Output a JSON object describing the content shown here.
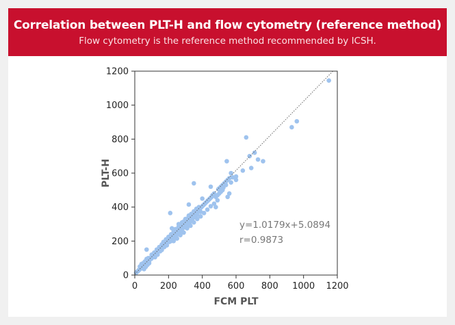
{
  "header": {
    "title": "Correlation between PLT-H and flow cytometry (reference method)",
    "subtitle": "Flow cytometry is the reference method recommended by ICSH."
  },
  "colors": {
    "banner": "#c8102e",
    "points": "#9fc3ee",
    "axis": "#333333",
    "trendline": "#666666",
    "annotation": "#777777"
  },
  "chart_data": {
    "type": "scatter",
    "xlabel": "FCM PLT",
    "ylabel": "PLT-H",
    "xlim": [
      0,
      1200
    ],
    "ylim": [
      0,
      1200
    ],
    "xticks": [
      0,
      200,
      400,
      600,
      800,
      1000,
      1200
    ],
    "yticks": [
      0,
      200,
      400,
      600,
      800,
      1000,
      1200
    ],
    "grid": false,
    "trendline": {
      "slope": 1.0179,
      "intercept": 5.0894
    },
    "annotations": [
      "y=1.0179x+5.0894",
      "r=0.9873"
    ],
    "points": [
      [
        8,
        14
      ],
      [
        12,
        18
      ],
      [
        18,
        22
      ],
      [
        22,
        28
      ],
      [
        26,
        30
      ],
      [
        30,
        35
      ],
      [
        34,
        38
      ],
      [
        38,
        44
      ],
      [
        40,
        48
      ],
      [
        42,
        40
      ],
      [
        45,
        52
      ],
      [
        48,
        50
      ],
      [
        50,
        55
      ],
      [
        52,
        60
      ],
      [
        55,
        50
      ],
      [
        58,
        62
      ],
      [
        60,
        70
      ],
      [
        62,
        58
      ],
      [
        65,
        72
      ],
      [
        68,
        66
      ],
      [
        70,
        78
      ],
      [
        72,
        70
      ],
      [
        75,
        80
      ],
      [
        78,
        75
      ],
      [
        80,
        85
      ],
      [
        82,
        90
      ],
      [
        85,
        82
      ],
      [
        88,
        95
      ],
      [
        90,
        92
      ],
      [
        92,
        98
      ],
      [
        95,
        100
      ],
      [
        98,
        96
      ],
      [
        100,
        108
      ],
      [
        102,
        104
      ],
      [
        105,
        110
      ],
      [
        108,
        115
      ],
      [
        110,
        106
      ],
      [
        112,
        120
      ],
      [
        115,
        118
      ],
      [
        118,
        125
      ],
      [
        120,
        122
      ],
      [
        122,
        130
      ],
      [
        125,
        128
      ],
      [
        128,
        135
      ],
      [
        130,
        132
      ],
      [
        132,
        140
      ],
      [
        135,
        138
      ],
      [
        138,
        145
      ],
      [
        140,
        142
      ],
      [
        142,
        150
      ],
      [
        145,
        148
      ],
      [
        148,
        155
      ],
      [
        150,
        152
      ],
      [
        152,
        160
      ],
      [
        155,
        158
      ],
      [
        158,
        165
      ],
      [
        160,
        162
      ],
      [
        162,
        170
      ],
      [
        165,
        168
      ],
      [
        168,
        175
      ],
      [
        170,
        172
      ],
      [
        172,
        180
      ],
      [
        175,
        178
      ],
      [
        178,
        185
      ],
      [
        180,
        182
      ],
      [
        182,
        190
      ],
      [
        185,
        188
      ],
      [
        188,
        195
      ],
      [
        190,
        192
      ],
      [
        192,
        200
      ],
      [
        195,
        198
      ],
      [
        198,
        205
      ],
      [
        200,
        202
      ],
      [
        202,
        210
      ],
      [
        205,
        208
      ],
      [
        208,
        215
      ],
      [
        210,
        212
      ],
      [
        212,
        220
      ],
      [
        215,
        218
      ],
      [
        218,
        225
      ],
      [
        220,
        222
      ],
      [
        222,
        230
      ],
      [
        225,
        228
      ],
      [
        228,
        235
      ],
      [
        230,
        232
      ],
      [
        232,
        240
      ],
      [
        235,
        238
      ],
      [
        238,
        245
      ],
      [
        240,
        242
      ],
      [
        242,
        250
      ],
      [
        245,
        248
      ],
      [
        248,
        255
      ],
      [
        250,
        252
      ],
      [
        252,
        260
      ],
      [
        255,
        258
      ],
      [
        258,
        265
      ],
      [
        260,
        262
      ],
      [
        262,
        270
      ],
      [
        265,
        268
      ],
      [
        268,
        275
      ],
      [
        270,
        272
      ],
      [
        272,
        280
      ],
      [
        275,
        278
      ],
      [
        278,
        285
      ],
      [
        280,
        282
      ],
      [
        282,
        290
      ],
      [
        285,
        288
      ],
      [
        288,
        295
      ],
      [
        290,
        292
      ],
      [
        292,
        300
      ],
      [
        295,
        298
      ],
      [
        298,
        305
      ],
      [
        300,
        302
      ],
      [
        302,
        310
      ],
      [
        305,
        308
      ],
      [
        308,
        315
      ],
      [
        310,
        312
      ],
      [
        312,
        320
      ],
      [
        315,
        318
      ],
      [
        318,
        325
      ],
      [
        320,
        322
      ],
      [
        322,
        330
      ],
      [
        325,
        328
      ],
      [
        328,
        335
      ],
      [
        330,
        332
      ],
      [
        332,
        340
      ],
      [
        335,
        338
      ],
      [
        338,
        345
      ],
      [
        340,
        342
      ],
      [
        342,
        350
      ],
      [
        345,
        348
      ],
      [
        348,
        355
      ],
      [
        350,
        352
      ],
      [
        352,
        360
      ],
      [
        355,
        358
      ],
      [
        358,
        365
      ],
      [
        360,
        362
      ],
      [
        362,
        370
      ],
      [
        365,
        368
      ],
      [
        368,
        375
      ],
      [
        370,
        372
      ],
      [
        372,
        380
      ],
      [
        375,
        378
      ],
      [
        378,
        385
      ],
      [
        380,
        382
      ],
      [
        385,
        390
      ],
      [
        390,
        395
      ],
      [
        395,
        400
      ],
      [
        400,
        405
      ],
      [
        405,
        410
      ],
      [
        410,
        415
      ],
      [
        415,
        420
      ],
      [
        420,
        425
      ],
      [
        425,
        430
      ],
      [
        430,
        435
      ],
      [
        435,
        440
      ],
      [
        440,
        445
      ],
      [
        445,
        450
      ],
      [
        450,
        455
      ],
      [
        455,
        460
      ],
      [
        120,
        105
      ],
      [
        135,
        120
      ],
      [
        150,
        140
      ],
      [
        160,
        148
      ],
      [
        175,
        165
      ],
      [
        190,
        175
      ],
      [
        205,
        195
      ],
      [
        215,
        200
      ],
      [
        225,
        210
      ],
      [
        240,
        228
      ],
      [
        255,
        240
      ],
      [
        265,
        250
      ],
      [
        280,
        262
      ],
      [
        295,
        280
      ],
      [
        310,
        295
      ],
      [
        325,
        310
      ],
      [
        340,
        325
      ],
      [
        355,
        340
      ],
      [
        370,
        355
      ],
      [
        390,
        372
      ],
      [
        100,
        120
      ],
      [
        115,
        132
      ],
      [
        130,
        150
      ],
      [
        145,
        165
      ],
      [
        160,
        180
      ],
      [
        170,
        195
      ],
      [
        185,
        210
      ],
      [
        200,
        225
      ],
      [
        215,
        240
      ],
      [
        230,
        255
      ],
      [
        245,
        270
      ],
      [
        260,
        285
      ],
      [
        275,
        300
      ],
      [
        290,
        315
      ],
      [
        305,
        330
      ],
      [
        320,
        345
      ],
      [
        335,
        360
      ],
      [
        350,
        375
      ],
      [
        365,
        390
      ],
      [
        380,
        400
      ],
      [
        220,
        275
      ],
      [
        240,
        270
      ],
      [
        260,
        300
      ],
      [
        280,
        310
      ],
      [
        300,
        330
      ],
      [
        320,
        350
      ],
      [
        230,
        200
      ],
      [
        250,
        215
      ],
      [
        270,
        235
      ],
      [
        290,
        250
      ],
      [
        310,
        275
      ],
      [
        330,
        290
      ],
      [
        350,
        310
      ],
      [
        370,
        330
      ],
      [
        390,
        345
      ],
      [
        410,
        365
      ],
      [
        430,
        385
      ],
      [
        450,
        405
      ],
      [
        470,
        420
      ],
      [
        490,
        440
      ],
      [
        460,
        470
      ],
      [
        470,
        480
      ],
      [
        480,
        460
      ],
      [
        490,
        470
      ],
      [
        500,
        510
      ],
      [
        510,
        520
      ],
      [
        520,
        500
      ],
      [
        530,
        540
      ],
      [
        540,
        530
      ],
      [
        550,
        560
      ],
      [
        500,
        480
      ],
      [
        520,
        530
      ],
      [
        540,
        550
      ],
      [
        560,
        570
      ],
      [
        570,
        545
      ],
      [
        580,
        575
      ],
      [
        600,
        580
      ],
      [
        510,
        490
      ],
      [
        495,
        505
      ],
      [
        525,
        515
      ],
      [
        30,
        50
      ],
      [
        40,
        65
      ],
      [
        50,
        70
      ],
      [
        60,
        80
      ],
      [
        70,
        95
      ],
      [
        80,
        100
      ],
      [
        55,
        35
      ],
      [
        65,
        48
      ],
      [
        75,
        60
      ],
      [
        85,
        70
      ],
      [
        70,
        150
      ],
      [
        210,
        365
      ],
      [
        350,
        540
      ],
      [
        320,
        415
      ],
      [
        400,
        450
      ],
      [
        450,
        520
      ],
      [
        480,
        400
      ],
      [
        550,
        460
      ],
      [
        560,
        480
      ],
      [
        600,
        560
      ],
      [
        570,
        600
      ],
      [
        545,
        670
      ],
      [
        640,
        615
      ],
      [
        660,
        810
      ],
      [
        680,
        700
      ],
      [
        690,
        630
      ],
      [
        710,
        720
      ],
      [
        730,
        680
      ],
      [
        760,
        670
      ],
      [
        930,
        870
      ],
      [
        960,
        905
      ],
      [
        1150,
        1145
      ]
    ]
  }
}
